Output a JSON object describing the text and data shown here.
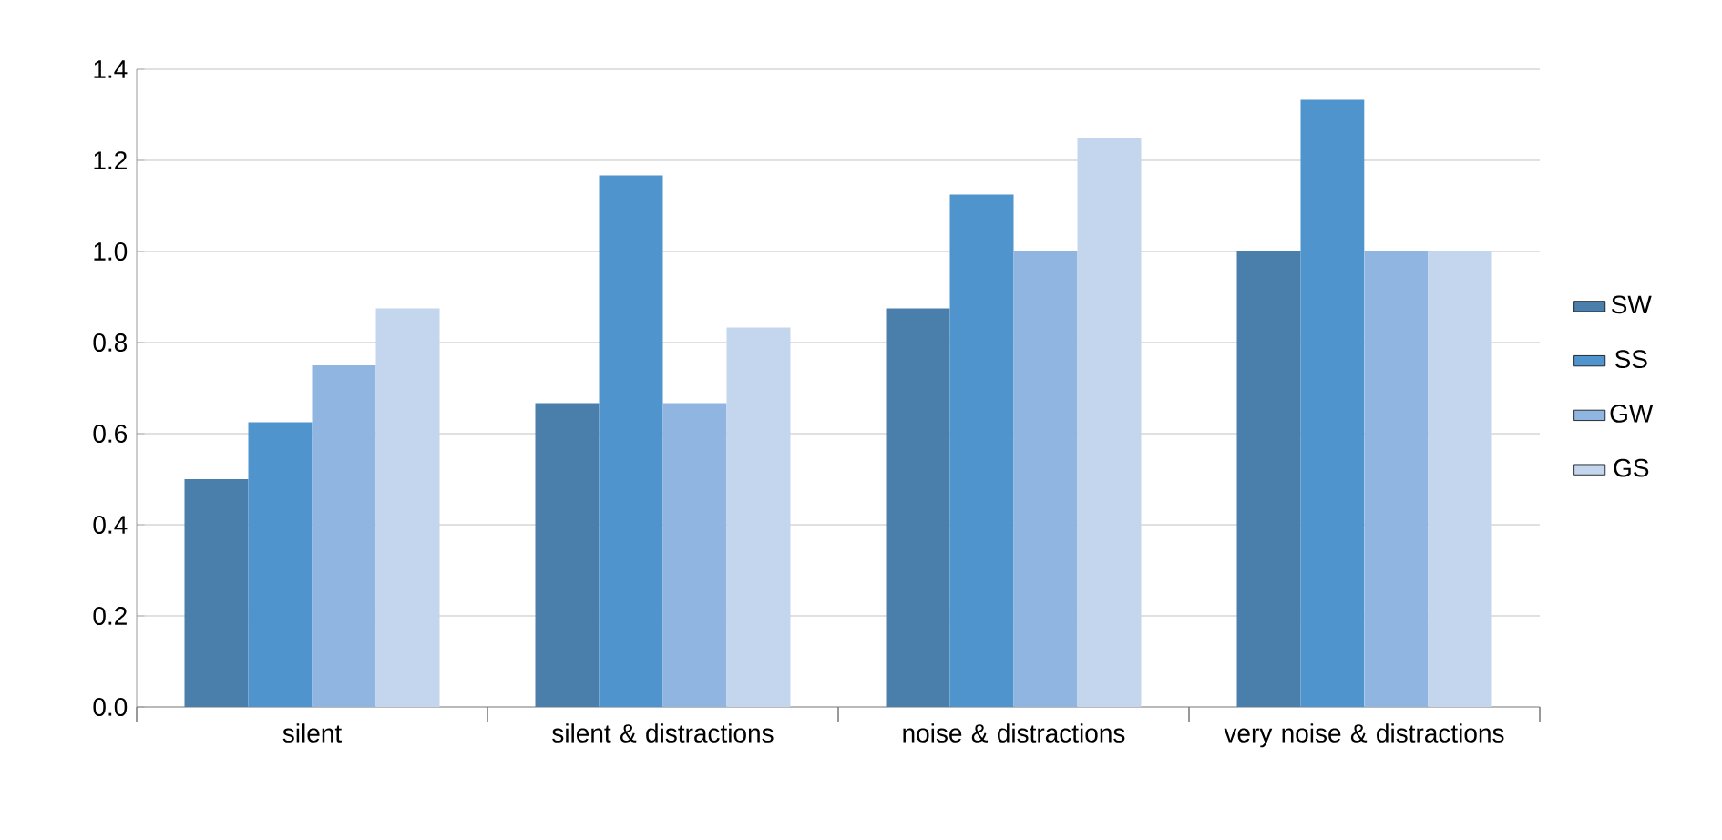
{
  "chart_data": {
    "type": "bar",
    "categories": [
      "silent",
      "silent & distractions",
      "noise & distractions",
      "very noise & distractions"
    ],
    "series": [
      {
        "name": "SW",
        "color": "#4a7eab",
        "values": [
          0.5,
          0.667,
          0.875,
          1.0
        ]
      },
      {
        "name": "SS",
        "color": "#4f94cd",
        "values": [
          0.625,
          1.167,
          1.125,
          1.333
        ]
      },
      {
        "name": "GW",
        "color": "#8fb5e0",
        "values": [
          0.75,
          0.667,
          1.0,
          1.0
        ]
      },
      {
        "name": "GS",
        "color": "#c3d6ee",
        "values": [
          0.875,
          0.833,
          1.25,
          1.0
        ]
      }
    ],
    "ylim": [
      0,
      1.4
    ],
    "yticks": [
      {
        "value": 0,
        "label": "0.0"
      },
      {
        "value": 0.2,
        "label": "0.2"
      },
      {
        "value": 0.4,
        "label": "0.4"
      },
      {
        "value": 0.6,
        "label": "0.6"
      },
      {
        "value": 0.8,
        "label": "0.8"
      },
      {
        "value": 1.0,
        "label": "1.0"
      },
      {
        "value": 1.2,
        "label": "1.2"
      },
      {
        "value": 1.4,
        "label": "1.4"
      }
    ],
    "grid": "y",
    "legend": "right"
  }
}
